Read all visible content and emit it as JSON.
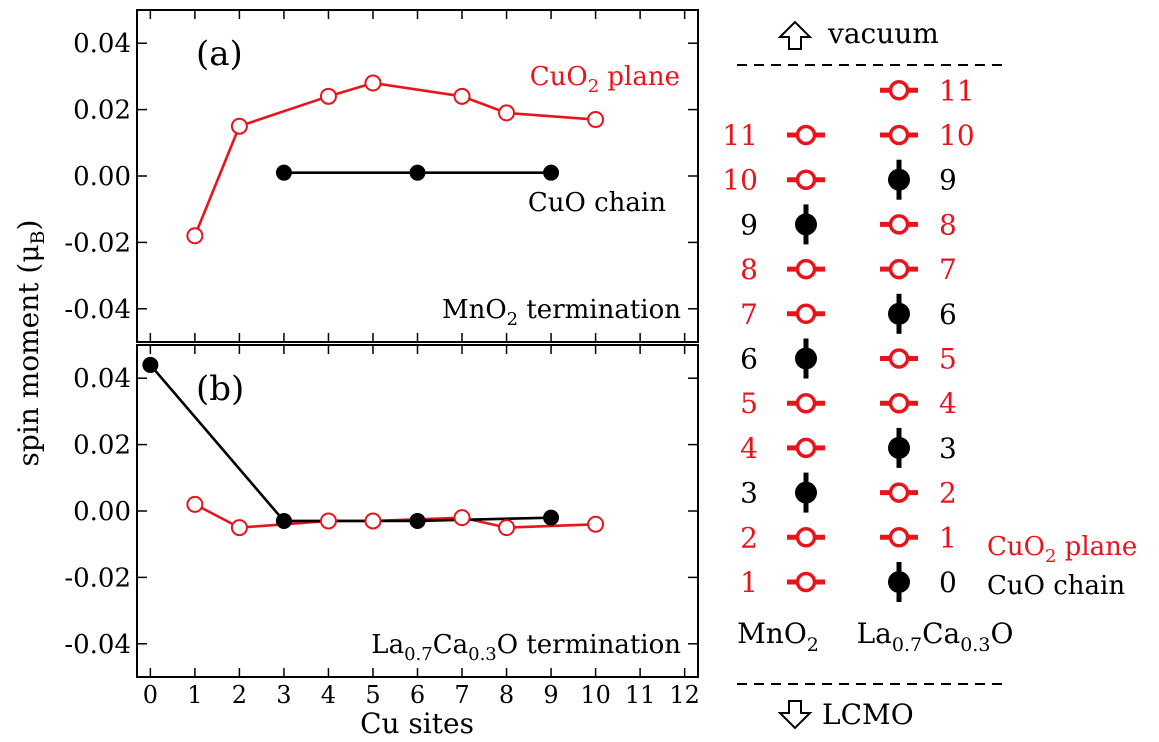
{
  "colors": {
    "plane": "#e8141b",
    "chain": "#000000",
    "axis": "#000000"
  },
  "icons": {
    "up": "up-arrow-icon",
    "down": "down-arrow-icon"
  },
  "chart_data": [
    {
      "type": "line",
      "panel_label": "(a)",
      "annotation": "MnO2 termination",
      "annotation_parts": [
        "MnO",
        "2",
        " termination"
      ],
      "ylabel_parts": [
        "spin moment (",
        "μ",
        "B",
        ")"
      ],
      "ylim": [
        -0.05,
        0.05
      ],
      "xlim": [
        -0.3,
        12.3
      ],
      "yticks": [
        -0.04,
        -0.02,
        0.0,
        0.02,
        0.04
      ],
      "ytick_labels": [
        "-0.04",
        "-0.02",
        "0.00",
        "0.02",
        "0.04"
      ],
      "series": [
        {
          "name": "CuO2 plane",
          "label_parts": [
            "CuO",
            "2",
            " plane"
          ],
          "x": [
            1,
            2,
            4,
            5,
            7,
            8,
            10
          ],
          "y": [
            -0.018,
            0.015,
            0.024,
            0.028,
            0.024,
            0.019,
            0.017
          ],
          "marker": "open-circle",
          "color": "#e8141b"
        },
        {
          "name": "CuO chain",
          "label_parts": [
            "CuO chain"
          ],
          "x": [
            3,
            6,
            9
          ],
          "y": [
            0.001,
            0.001,
            0.001
          ],
          "marker": "filled-circle",
          "color": "#000000"
        }
      ]
    },
    {
      "type": "line",
      "panel_label": "(b)",
      "annotation": "La0.7Ca0.3O termination",
      "annotation_parts": [
        "La",
        "0.7",
        "Ca",
        "0.3",
        "O termination"
      ],
      "xlabel": "Cu sites",
      "ylim": [
        -0.05,
        0.05
      ],
      "xlim": [
        -0.3,
        12.3
      ],
      "yticks": [
        -0.04,
        -0.02,
        0.0,
        0.02,
        0.04
      ],
      "ytick_labels": [
        "-0.04",
        "-0.02",
        "0.00",
        "0.02",
        "0.04"
      ],
      "xticks": [
        0,
        1,
        2,
        3,
        4,
        5,
        6,
        7,
        8,
        9,
        10,
        11,
        12
      ],
      "xtick_labels": [
        "0",
        "1",
        "2",
        "3",
        "4",
        "5",
        "6",
        "7",
        "8",
        "9",
        "10",
        "11",
        "12"
      ],
      "series": [
        {
          "name": "CuO2 plane",
          "x": [
            1,
            2,
            4,
            5,
            7,
            8,
            10
          ],
          "y": [
            0.002,
            -0.005,
            -0.003,
            -0.003,
            -0.002,
            -0.005,
            -0.004
          ],
          "marker": "open-circle",
          "color": "#e8141b"
        },
        {
          "name": "CuO chain",
          "x": [
            0,
            3,
            6,
            9
          ],
          "y": [
            0.044,
            -0.003,
            -0.003,
            -0.002
          ],
          "marker": "filled-circle",
          "color": "#000000"
        }
      ]
    }
  ],
  "schematic": {
    "vacuum_label": "vacuum",
    "lcmo_label": "LCMO",
    "column_labels": [
      {
        "parts": [
          "MnO",
          "2"
        ]
      },
      {
        "parts": [
          "La",
          "0.7",
          "Ca",
          "0.3",
          "O"
        ]
      }
    ],
    "legend": {
      "plane_parts": [
        "CuO",
        "2",
        " plane"
      ],
      "chain_label": "CuO chain"
    },
    "columns": [
      {
        "name": "MnO2",
        "sites": [
          {
            "n": "1",
            "kind": "plane"
          },
          {
            "n": "2",
            "kind": "plane"
          },
          {
            "n": "3",
            "kind": "chain"
          },
          {
            "n": "4",
            "kind": "plane"
          },
          {
            "n": "5",
            "kind": "plane"
          },
          {
            "n": "6",
            "kind": "chain"
          },
          {
            "n": "7",
            "kind": "plane"
          },
          {
            "n": "8",
            "kind": "plane"
          },
          {
            "n": "9",
            "kind": "chain"
          },
          {
            "n": "10",
            "kind": "plane"
          },
          {
            "n": "11",
            "kind": "plane"
          }
        ]
      },
      {
        "name": "La0.7Ca0.3O",
        "sites": [
          {
            "n": "0",
            "kind": "chain"
          },
          {
            "n": "1",
            "kind": "plane"
          },
          {
            "n": "2",
            "kind": "plane"
          },
          {
            "n": "3",
            "kind": "chain"
          },
          {
            "n": "4",
            "kind": "plane"
          },
          {
            "n": "5",
            "kind": "plane"
          },
          {
            "n": "6",
            "kind": "chain"
          },
          {
            "n": "7",
            "kind": "plane"
          },
          {
            "n": "8",
            "kind": "plane"
          },
          {
            "n": "9",
            "kind": "chain"
          },
          {
            "n": "10",
            "kind": "plane"
          },
          {
            "n": "11",
            "kind": "plane"
          }
        ]
      }
    ]
  }
}
